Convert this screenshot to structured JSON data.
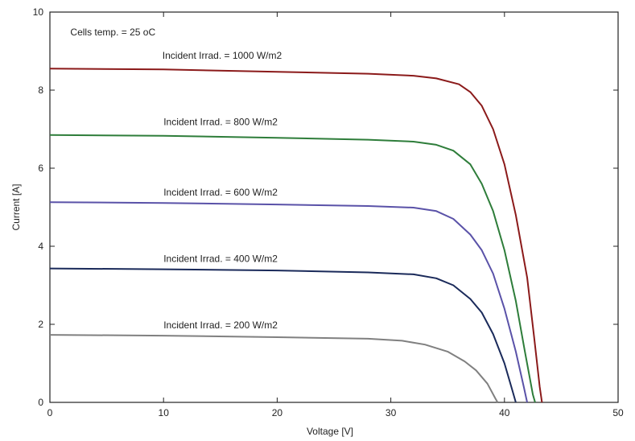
{
  "chart_data": {
    "type": "line",
    "title": "",
    "xlabel": "Voltage [V]",
    "ylabel": "Current [A]",
    "xlim": [
      0,
      50
    ],
    "ylim": [
      0,
      10
    ],
    "xticks": [
      "0",
      "10",
      "20",
      "30",
      "40",
      "50"
    ],
    "yticks": [
      "0",
      "2",
      "4",
      "6",
      "8",
      "10"
    ],
    "grid": false,
    "legend": "none",
    "annotations": [
      {
        "text": "Cells temp.  = 25 oC"
      }
    ],
    "series": [
      {
        "label": "Incident Irrad. = 1000 W/m2",
        "color": "#8b1a1a",
        "label_at": [
          9.9,
          8.8
        ],
        "points": [
          [
            0,
            8.55
          ],
          [
            10,
            8.53
          ],
          [
            20,
            8.47
          ],
          [
            28,
            8.42
          ],
          [
            32,
            8.37
          ],
          [
            34,
            8.3
          ],
          [
            36,
            8.15
          ],
          [
            37,
            7.95
          ],
          [
            38,
            7.6
          ],
          [
            39,
            7.0
          ],
          [
            40,
            6.1
          ],
          [
            41,
            4.8
          ],
          [
            42,
            3.2
          ],
          [
            42.6,
            1.7
          ],
          [
            43.1,
            0.4
          ],
          [
            43.3,
            0
          ]
        ]
      },
      {
        "label": "Incident Irrad. = 800 W/m2",
        "color": "#2e7d3a",
        "label_at": [
          10.0,
          7.1
        ],
        "points": [
          [
            0,
            6.85
          ],
          [
            10,
            6.83
          ],
          [
            20,
            6.78
          ],
          [
            28,
            6.73
          ],
          [
            32,
            6.68
          ],
          [
            34,
            6.6
          ],
          [
            35.5,
            6.45
          ],
          [
            37,
            6.1
          ],
          [
            38,
            5.6
          ],
          [
            39,
            4.9
          ],
          [
            40,
            3.9
          ],
          [
            41,
            2.6
          ],
          [
            41.8,
            1.3
          ],
          [
            42.5,
            0.2
          ],
          [
            42.7,
            0
          ]
        ]
      },
      {
        "label": "Incident Irrad. = 600 W/m2",
        "color": "#5a52a8",
        "label_at": [
          10.0,
          5.3
        ],
        "points": [
          [
            0,
            5.13
          ],
          [
            10,
            5.11
          ],
          [
            20,
            5.07
          ],
          [
            28,
            5.03
          ],
          [
            32,
            4.99
          ],
          [
            34,
            4.9
          ],
          [
            35.5,
            4.7
          ],
          [
            37,
            4.3
          ],
          [
            38,
            3.9
          ],
          [
            39,
            3.3
          ],
          [
            40,
            2.4
          ],
          [
            41,
            1.3
          ],
          [
            41.7,
            0.4
          ],
          [
            42.0,
            0
          ]
        ]
      },
      {
        "label": "Incident Irrad. = 400 W/m2",
        "color": "#1a2a5a",
        "label_at": [
          10.0,
          3.6
        ],
        "points": [
          [
            0,
            3.43
          ],
          [
            10,
            3.41
          ],
          [
            20,
            3.38
          ],
          [
            28,
            3.33
          ],
          [
            32,
            3.28
          ],
          [
            34,
            3.18
          ],
          [
            35.5,
            3.0
          ],
          [
            37,
            2.65
          ],
          [
            38,
            2.3
          ],
          [
            39,
            1.75
          ],
          [
            40,
            1.0
          ],
          [
            40.7,
            0.3
          ],
          [
            41.0,
            0
          ]
        ]
      },
      {
        "label": "Incident Irrad. = 200 W/m2",
        "color": "#808080",
        "label_at": [
          10.0,
          1.9
        ],
        "points": [
          [
            0,
            1.73
          ],
          [
            10,
            1.71
          ],
          [
            20,
            1.67
          ],
          [
            28,
            1.63
          ],
          [
            31,
            1.58
          ],
          [
            33,
            1.48
          ],
          [
            35,
            1.3
          ],
          [
            36.5,
            1.05
          ],
          [
            37.5,
            0.82
          ],
          [
            38.5,
            0.48
          ],
          [
            39.2,
            0.1
          ],
          [
            39.4,
            0
          ]
        ]
      }
    ]
  }
}
